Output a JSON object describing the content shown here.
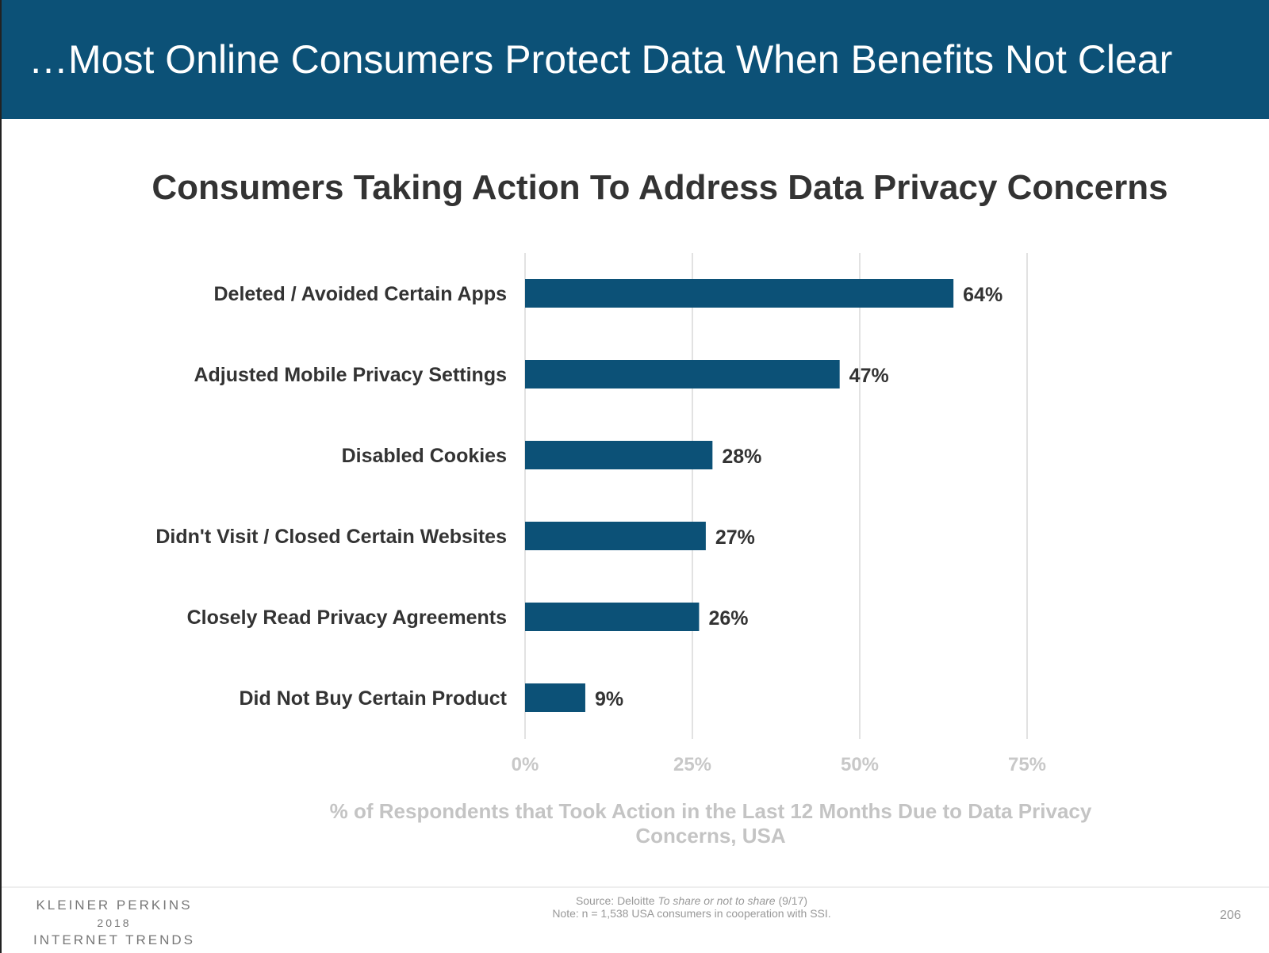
{
  "header": {
    "title": "…Most Online Consumers Protect Data When Benefits Not Clear"
  },
  "chart_data": {
    "type": "bar",
    "orientation": "horizontal",
    "title": "Consumers Taking Action To Address Data Privacy Concerns",
    "categories": [
      "Deleted / Avoided Certain Apps",
      "Adjusted Mobile Privacy Settings",
      "Disabled Cookies",
      "Didn't Visit / Closed Certain Websites",
      "Closely Read Privacy Agreements",
      "Did Not Buy Certain Product"
    ],
    "values": [
      64,
      47,
      28,
      27,
      26,
      9
    ],
    "data_labels": [
      "64%",
      "47%",
      "28%",
      "27%",
      "26%",
      "9%"
    ],
    "xlim": [
      0,
      75
    ],
    "xticks": [
      "0%",
      "25%",
      "50%",
      "75%"
    ],
    "xlabel": "% of Respondents that Took Action in the Last 12 Months Due to Data Privacy Concerns, USA",
    "grid": true,
    "bar_color": "#0c5177"
  },
  "footer": {
    "logo": {
      "line1": "KLEINER PERKINS",
      "line2": "2018",
      "line3": "INTERNET TRENDS"
    },
    "source_prefix": "Source: Deloitte ",
    "source_title": "To share or not to share",
    "source_suffix": " (9/17)",
    "note": "Note: n = 1,538 USA consumers in cooperation with SSI.",
    "page_number": "206"
  }
}
